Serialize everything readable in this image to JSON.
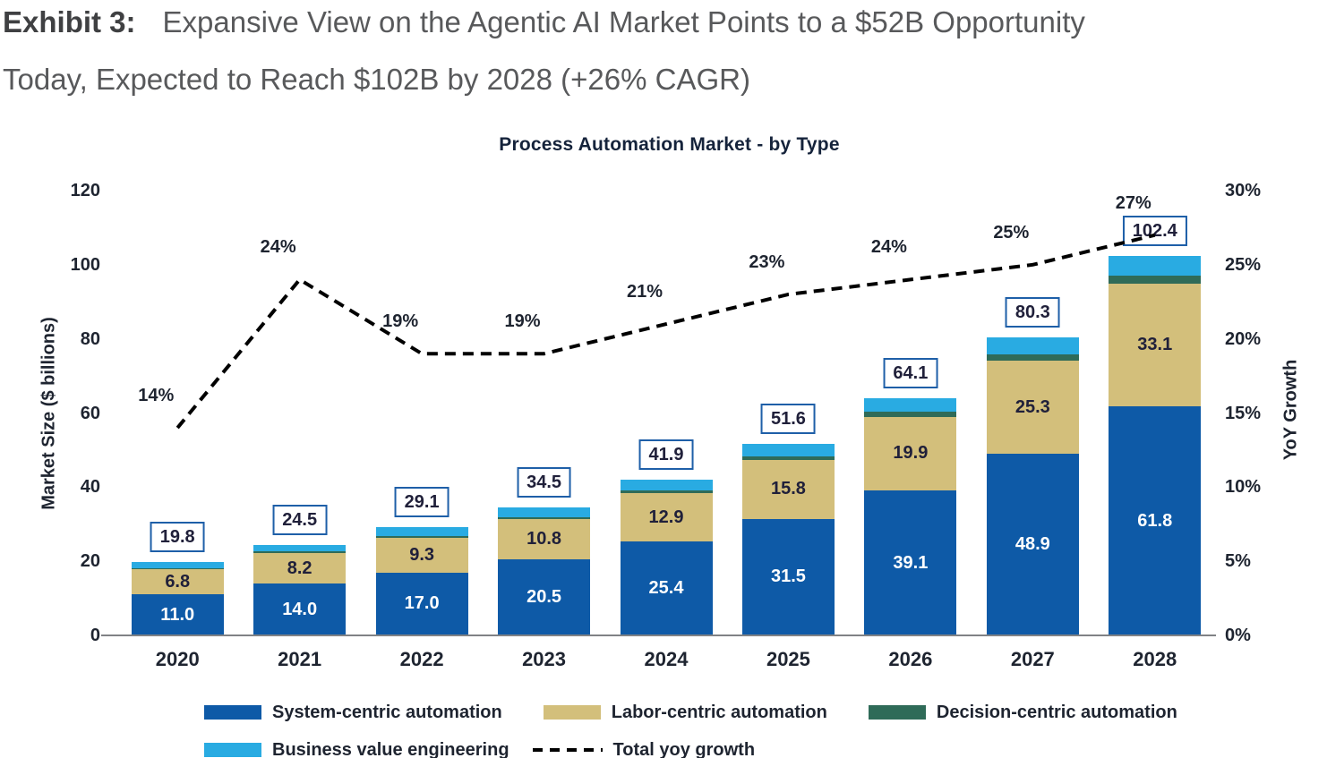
{
  "header": {
    "exhibit_label": "Exhibit 3:",
    "title_line1": "Expansive View on the Agentic AI Market Points to a $52B Opportunity",
    "title_line2": "Today, Expected to Reach $102B by 2028 (+26% CAGR)"
  },
  "chart_data": {
    "type": "bar",
    "stacked": true,
    "title": "Process Automation Market - by Type",
    "categories": [
      "2020",
      "2021",
      "2022",
      "2023",
      "2024",
      "2025",
      "2026",
      "2027",
      "2028"
    ],
    "series": [
      {
        "name": "System-centric automation",
        "color": "#0E5AA7",
        "values": [
          11.0,
          14.0,
          17.0,
          20.5,
          25.4,
          31.5,
          39.1,
          48.9,
          61.8
        ],
        "value_labels_visible": true,
        "label_color": "#FFFFFF"
      },
      {
        "name": "Labor-centric automation",
        "color": "#D3BF7B",
        "values": [
          6.8,
          8.2,
          9.3,
          10.8,
          12.9,
          15.8,
          19.9,
          25.3,
          33.1
        ],
        "value_labels_visible": true,
        "label_color": "#20203A"
      },
      {
        "name": "Decision-centric automation",
        "color": "#2F6B58",
        "values": [
          0.3,
          0.4,
          0.5,
          0.6,
          0.8,
          1.0,
          1.3,
          1.6,
          2.1
        ],
        "value_labels_visible": false,
        "estimated": true
      },
      {
        "name": "Business value engineering",
        "color": "#29ABE2",
        "values": [
          1.7,
          1.9,
          2.3,
          2.6,
          2.8,
          3.3,
          3.8,
          4.5,
          5.4
        ],
        "value_labels_visible": false,
        "estimated": true
      }
    ],
    "bar_totals": [
      19.8,
      24.5,
      29.1,
      34.5,
      41.9,
      51.6,
      64.1,
      80.3,
      102.4
    ],
    "total_box_style": {
      "border_color": "#1E5FA8",
      "text_color": "#20203A"
    },
    "line_series": {
      "name": "Total yoy growth",
      "color": "#000000",
      "style": "dashed",
      "values_pct": [
        14,
        24,
        19,
        19,
        21,
        23,
        24,
        25,
        27
      ],
      "point_labels": [
        "14%",
        "24%",
        "19%",
        "19%",
        "21%",
        "23%",
        "24%",
        "25%",
        "27%"
      ]
    },
    "left_axis": {
      "title": "Market Size ($ billions)",
      "min": 0,
      "max": 120,
      "tick_step": 20,
      "tick_labels": [
        "0",
        "20",
        "40",
        "60",
        "80",
        "100",
        "120"
      ]
    },
    "right_axis": {
      "title": "YoY Growth",
      "min": 0,
      "max": 30,
      "tick_step": 5,
      "tick_labels": [
        "0%",
        "5%",
        "10%",
        "15%",
        "20%",
        "25%",
        "30%"
      ]
    },
    "grid": "off",
    "legend_position": "bottom"
  }
}
